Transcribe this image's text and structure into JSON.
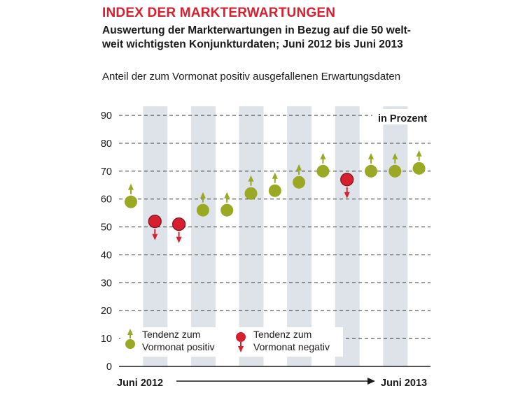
{
  "header": {
    "title": "INDEX DER MARKTERWARTUNGEN",
    "subtitle_line1": "Auswertung der Markterwartungen in Bezug auf die 50 welt-",
    "subtitle_line2": "weit wichtigsten Konjunkturdaten; Juni 2012 bis Juni 2013",
    "description": "Anteil der zum Vormonat positiv ausgefallenen Erwartungsdaten"
  },
  "chart_data": {
    "type": "scatter",
    "unit_label": "in Prozent",
    "ylim": [
      0,
      90
    ],
    "yticks": [
      0,
      10,
      20,
      30,
      40,
      50,
      60,
      70,
      80,
      90
    ],
    "grid": true,
    "x_start_label": "Juni 2012",
    "x_end_label": "Juni 2013",
    "points": [
      {
        "value": 59,
        "trend": "positiv"
      },
      {
        "value": 52,
        "trend": "negativ"
      },
      {
        "value": 51,
        "trend": "negativ"
      },
      {
        "value": 56,
        "trend": "positiv"
      },
      {
        "value": 56,
        "trend": "positiv"
      },
      {
        "value": 62,
        "trend": "positiv"
      },
      {
        "value": 63,
        "trend": "positiv"
      },
      {
        "value": 66,
        "trend": "positiv"
      },
      {
        "value": 70,
        "trend": "positiv"
      },
      {
        "value": 67,
        "trend": "negativ"
      },
      {
        "value": 70,
        "trend": "positiv"
      },
      {
        "value": 70,
        "trend": "positiv"
      },
      {
        "value": 71,
        "trend": "positiv"
      }
    ],
    "legend": {
      "positive_line1": "Tendenz zum",
      "positive_line2": "Vormonat positiv",
      "negative_line1": "Tendenz zum",
      "negative_line2": "Vormonat negativ"
    },
    "colors": {
      "positive": "#9aa823",
      "negative": "#d6202f",
      "band": "#dde3e8",
      "grid": "#333333"
    }
  }
}
